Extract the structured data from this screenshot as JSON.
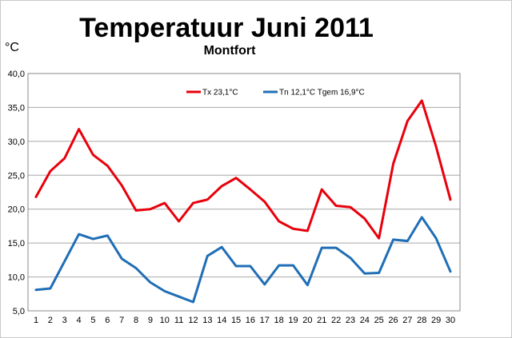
{
  "chart_data": {
    "type": "line",
    "title": "Temperatuur Juni 2011",
    "subtitle": "Montfort",
    "ylabel": "°C",
    "xlabel": "",
    "ylim": [
      5,
      40
    ],
    "yticks": [
      5,
      10,
      15,
      20,
      25,
      30,
      35,
      40
    ],
    "ytick_labels": [
      "5,0",
      "10,0",
      "15,0",
      "20,0",
      "25,0",
      "30,0",
      "35,0",
      "40,0"
    ],
    "x": [
      1,
      2,
      3,
      4,
      5,
      6,
      7,
      8,
      9,
      10,
      11,
      12,
      13,
      14,
      15,
      16,
      17,
      18,
      19,
      20,
      21,
      22,
      23,
      24,
      25,
      26,
      27,
      28,
      29,
      30
    ],
    "grid": "horizontal",
    "legend_position": "top-center",
    "series": [
      {
        "name": "Tx 23,1°C",
        "color": "#e8000b",
        "values": [
          21.8,
          25.6,
          27.5,
          31.8,
          28.0,
          26.4,
          23.5,
          19.8,
          20.0,
          20.9,
          18.2,
          20.9,
          21.4,
          23.4,
          24.6,
          22.9,
          21.1,
          18.2,
          17.1,
          16.8,
          22.9,
          20.5,
          20.3,
          18.6,
          15.7,
          26.7,
          33.0,
          36.0,
          29.2,
          21.4
        ]
      },
      {
        "name": "Tn 12,1°C  Tgem 16,9°C",
        "color": "#1f6eb6",
        "values": [
          8.1,
          8.3,
          12.3,
          16.3,
          15.6,
          16.1,
          12.7,
          11.3,
          9.2,
          7.9,
          7.1,
          6.3,
          13.1,
          14.4,
          11.6,
          11.6,
          8.9,
          11.7,
          11.7,
          8.8,
          14.3,
          14.3,
          12.8,
          10.5,
          10.6,
          15.5,
          15.3,
          18.8,
          15.7,
          10.8
        ]
      }
    ]
  }
}
